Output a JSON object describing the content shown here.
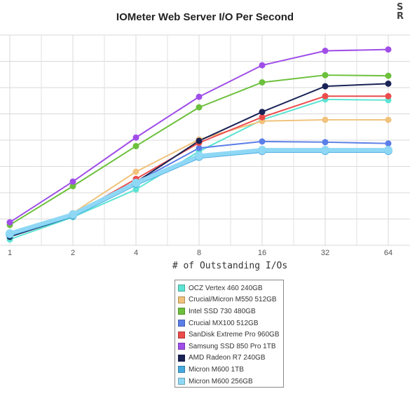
{
  "chart_data": {
    "type": "line",
    "title": "IOMeter Web Server I/O Per Second",
    "xlabel": "# of Outstanding I/Os",
    "ylabel": "",
    "categories": [
      "1",
      "2",
      "4",
      "8",
      "16",
      "32",
      "64"
    ],
    "grid": true,
    "legend_position": "bottom-center",
    "series": [
      {
        "name": "OCZ Vertex 460 240GB",
        "color": "#5de3d3",
        "values": [
          0.45,
          2.15,
          4.25,
          7.15,
          9.55,
          11.1,
          11.05
        ]
      },
      {
        "name": "Crucial/Micron M550 512GB",
        "color": "#f0c27b",
        "values": [
          0.9,
          2.45,
          5.6,
          8.05,
          9.45,
          9.55,
          9.55
        ]
      },
      {
        "name": "Intel SSD 730 480GB",
        "color": "#6cc03c",
        "values": [
          1.55,
          4.5,
          7.55,
          10.5,
          12.4,
          12.95,
          12.9
        ]
      },
      {
        "name": "Crucial MX100 512GB",
        "color": "#5b7ee8",
        "values": [
          0.7,
          2.25,
          4.8,
          7.4,
          7.9,
          7.85,
          7.75
        ]
      },
      {
        "name": "SanDisk Extreme Pro 960GB",
        "color": "#ec4c4c",
        "values": [
          0.75,
          2.3,
          5.05,
          7.8,
          9.75,
          11.35,
          11.35
        ]
      },
      {
        "name": "Samsung SSD 850 Pro 1TB",
        "color": "#a04ee8",
        "values": [
          1.75,
          4.85,
          8.2,
          11.3,
          13.7,
          14.8,
          14.9
        ]
      },
      {
        "name": "AMD Radeon R7 240GB",
        "color": "#1a2356",
        "values": [
          0.65,
          2.2,
          4.8,
          7.95,
          10.15,
          12.1,
          12.3
        ]
      },
      {
        "name": "Micron M600 1TB",
        "color": "#45a9e0",
        "values": [
          0.85,
          2.3,
          4.7,
          6.75,
          7.2,
          7.2,
          7.2
        ]
      },
      {
        "name": "Micron M600 256GB",
        "color": "#8fd8f5",
        "values": [
          0.9,
          2.35,
          4.75,
          6.8,
          7.25,
          7.25,
          7.25
        ]
      }
    ],
    "ylim": [
      0,
      16
    ]
  }
}
